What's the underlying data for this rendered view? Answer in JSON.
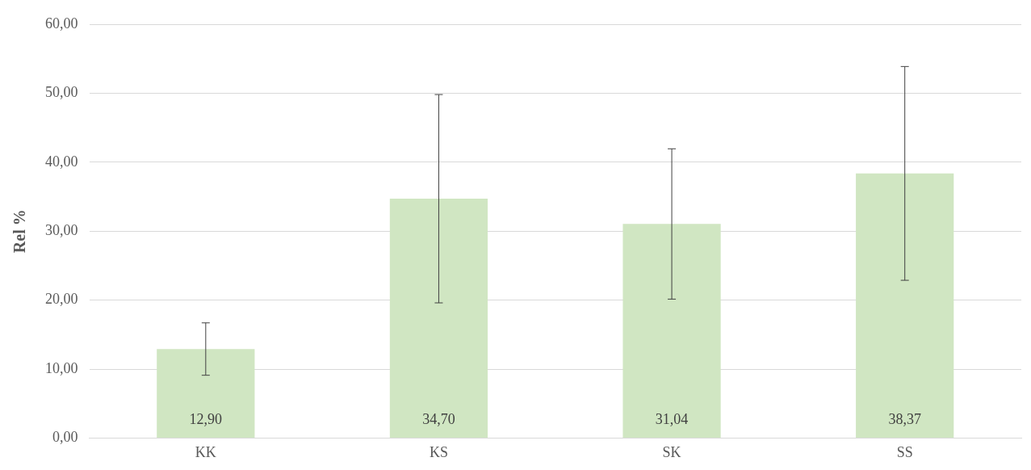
{
  "chart_data": {
    "type": "bar",
    "ylabel": "Rel %",
    "categories": [
      "KK",
      "KS",
      "SK",
      "SS"
    ],
    "values": [
      12.9,
      34.7,
      31.04,
      38.37
    ],
    "value_labels": [
      "12,90",
      "34,70",
      "31,04",
      "38,37"
    ],
    "errors": [
      3.8,
      15.1,
      10.9,
      15.5
    ],
    "color": "#d0e6c2",
    "ylim": [
      0,
      60
    ],
    "yticks": [
      {
        "value": 0,
        "label": "0,00"
      },
      {
        "value": 10,
        "label": "10,00"
      },
      {
        "value": 20,
        "label": "20,00"
      },
      {
        "value": 30,
        "label": "30,00"
      },
      {
        "value": 40,
        "label": "40,00"
      },
      {
        "value": 50,
        "label": "50,00"
      },
      {
        "value": 60,
        "label": "60,00"
      }
    ],
    "grid": "y",
    "legend": false
  }
}
